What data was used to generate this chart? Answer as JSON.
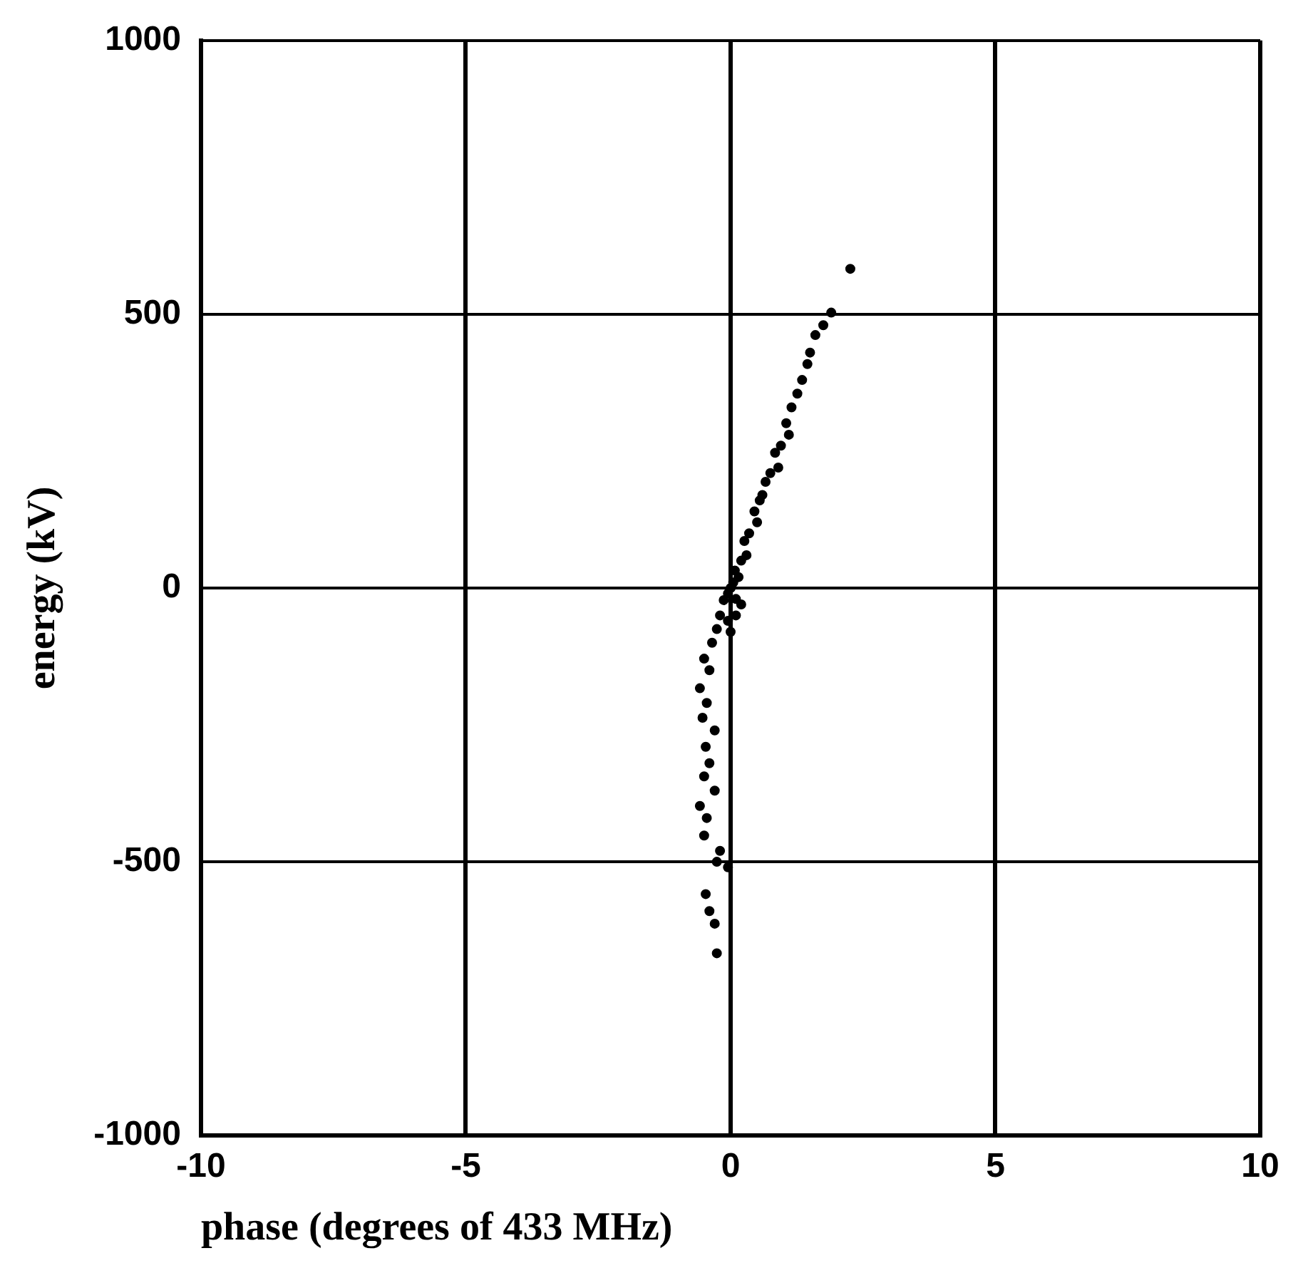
{
  "chart_data": {
    "type": "scatter",
    "xlabel": "phase (degrees of 433 MHz)",
    "ylabel": "energy (kV)",
    "xlim": [
      -10,
      10
    ],
    "ylim": [
      -1000,
      1000
    ],
    "xticks": [
      -10,
      -5,
      0,
      5,
      10
    ],
    "yticks": [
      -1000,
      -500,
      0,
      500,
      1000
    ],
    "grid": true,
    "legend": false,
    "marker": "circle",
    "series": [
      {
        "color": "#000000",
        "x": [
          2.26,
          1.9,
          1.75,
          1.6,
          1.5,
          1.45,
          1.35,
          1.26,
          1.15,
          1.05,
          1.1,
          0.95,
          0.84,
          0.9,
          0.75,
          0.66,
          0.6,
          0.55,
          0.45,
          0.5,
          0.35,
          0.26,
          0.3,
          0.2,
          0.08,
          0.15,
          0.05,
          0.0,
          -0.05,
          0.1,
          0.2,
          0.1,
          -0.05,
          0.0,
          -0.13,
          -0.2,
          -0.26,
          -0.35,
          -0.5,
          -0.4,
          -0.58,
          -0.45,
          -0.53,
          -0.3,
          -0.47,
          -0.4,
          -0.5,
          -0.3,
          -0.58,
          -0.45,
          -0.5,
          -0.2,
          -0.26,
          -0.05,
          -0.47,
          -0.4,
          -0.3,
          -0.26
        ],
        "values": [
          583,
          503,
          480,
          462,
          430,
          409,
          380,
          355,
          330,
          301,
          280,
          260,
          247,
          220,
          210,
          194,
          170,
          160,
          140,
          120,
          100,
          86,
          60,
          50,
          32,
          20,
          10,
          0,
          -10,
          -20,
          -30,
          -50,
          -60,
          -80,
          -22,
          -50,
          -75,
          -100,
          -129,
          -150,
          -183,
          -210,
          -237,
          -260,
          -290,
          -320,
          -344,
          -370,
          -398,
          -420,
          -452,
          -480,
          -500,
          -510,
          -559,
          -590,
          -613,
          -667
        ]
      }
    ]
  }
}
